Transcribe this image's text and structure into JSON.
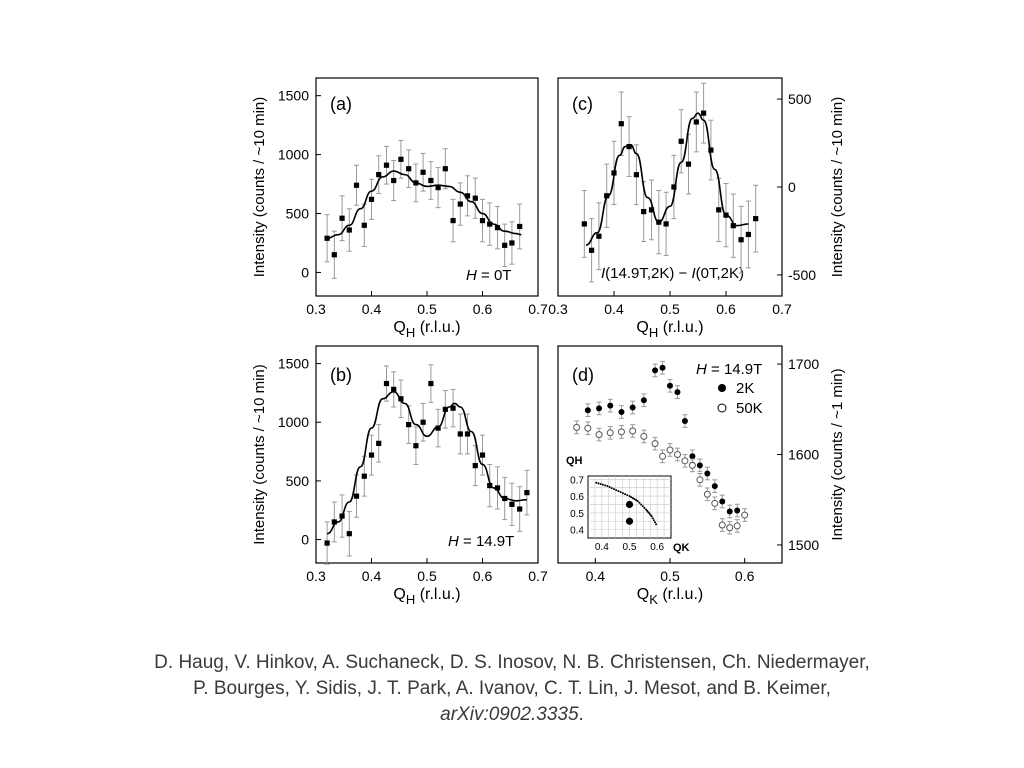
{
  "figure_area": "neutron scattering figure, four panels",
  "chart_data": [
    {
      "id": "a",
      "type": "scatter",
      "panel_label": "(a)",
      "annotation": "H = 0T",
      "xlabel": "QH (r.l.u.)",
      "ylabel": "Intensity (counts / ~10 min)",
      "xlim": [
        0.3,
        0.7
      ],
      "ylim": [
        -200,
        1650
      ],
      "xticks": [
        0.3,
        0.4,
        0.5,
        0.6,
        0.7
      ],
      "yticks": [
        0,
        500,
        1000,
        1500
      ],
      "series": [
        {
          "name": "data",
          "marker": "filled-square",
          "x": [
            0.32,
            0.333,
            0.347,
            0.36,
            0.373,
            0.387,
            0.4,
            0.413,
            0.427,
            0.44,
            0.453,
            0.467,
            0.48,
            0.493,
            0.507,
            0.52,
            0.533,
            0.547,
            0.56,
            0.573,
            0.587,
            0.6,
            0.613,
            0.627,
            0.64,
            0.653,
            0.667
          ],
          "y": [
            290,
            150,
            460,
            360,
            740,
            400,
            620,
            830,
            910,
            780,
            960,
            880,
            760,
            850,
            780,
            720,
            880,
            440,
            580,
            650,
            630,
            440,
            410,
            380,
            230,
            250,
            390
          ],
          "err": [
            200,
            200,
            190,
            180,
            170,
            180,
            170,
            160,
            160,
            170,
            160,
            160,
            160,
            160,
            160,
            170,
            170,
            180,
            180,
            170,
            170,
            180,
            180,
            180,
            180,
            180,
            190
          ]
        },
        {
          "name": "fit",
          "line": true,
          "x": [
            0.32,
            0.34,
            0.36,
            0.38,
            0.4,
            0.42,
            0.44,
            0.46,
            0.48,
            0.5,
            0.52,
            0.54,
            0.56,
            0.58,
            0.6,
            0.62,
            0.64,
            0.66,
            0.67
          ],
          "y": [
            290,
            320,
            400,
            540,
            690,
            810,
            860,
            830,
            760,
            730,
            740,
            730,
            680,
            600,
            500,
            410,
            350,
            330,
            320
          ]
        }
      ]
    },
    {
      "id": "b",
      "type": "scatter",
      "panel_label": "(b)",
      "annotation": "H = 14.9T",
      "xlabel": "QH (r.l.u.)",
      "ylabel": "Intensity (counts / ~10 min)",
      "xlim": [
        0.3,
        0.7
      ],
      "ylim": [
        -200,
        1650
      ],
      "xticks": [
        0.3,
        0.4,
        0.5,
        0.6,
        0.7
      ],
      "yticks": [
        0,
        500,
        1000,
        1500
      ],
      "series": [
        {
          "name": "data",
          "marker": "filled-square",
          "x": [
            0.32,
            0.333,
            0.347,
            0.36,
            0.373,
            0.387,
            0.4,
            0.413,
            0.427,
            0.44,
            0.453,
            0.467,
            0.48,
            0.493,
            0.507,
            0.52,
            0.533,
            0.547,
            0.56,
            0.573,
            0.587,
            0.6,
            0.613,
            0.627,
            0.64,
            0.653,
            0.667,
            0.68
          ],
          "y": [
            -30,
            150,
            200,
            50,
            370,
            540,
            720,
            820,
            1330,
            1280,
            1200,
            980,
            800,
            1000,
            1330,
            950,
            1110,
            1120,
            900,
            900,
            630,
            720,
            460,
            440,
            350,
            300,
            260,
            400
          ],
          "err": [
            180,
            170,
            180,
            190,
            180,
            170,
            170,
            160,
            150,
            150,
            160,
            160,
            160,
            160,
            160,
            160,
            160,
            160,
            170,
            170,
            170,
            170,
            180,
            180,
            180,
            180,
            190,
            190
          ]
        },
        {
          "name": "fit",
          "line": true,
          "x": [
            0.32,
            0.34,
            0.36,
            0.38,
            0.4,
            0.42,
            0.44,
            0.46,
            0.48,
            0.5,
            0.52,
            0.54,
            0.55,
            0.56,
            0.58,
            0.6,
            0.62,
            0.64,
            0.66,
            0.68
          ],
          "y": [
            50,
            150,
            320,
            620,
            950,
            1200,
            1260,
            1160,
            980,
            880,
            960,
            1130,
            1160,
            1130,
            920,
            640,
            440,
            350,
            330,
            340
          ]
        }
      ]
    },
    {
      "id": "c",
      "type": "scatter",
      "panel_label": "(c)",
      "annotation": "I(14.9T,2K) − I(0T,2K)",
      "xlabel": "QH (r.l.u.)",
      "ylabel": "Intensity (counts / ~10 min)",
      "y_axis_side": "right",
      "xlim": [
        0.3,
        0.7
      ],
      "ylim": [
        -620,
        620
      ],
      "xticks": [
        0.3,
        0.4,
        0.5,
        0.6,
        0.7
      ],
      "yticks": [
        -500,
        0,
        500
      ],
      "series": [
        {
          "name": "data",
          "marker": "filled-square",
          "x": [
            0.347,
            0.36,
            0.373,
            0.387,
            0.4,
            0.413,
            0.427,
            0.44,
            0.453,
            0.467,
            0.48,
            0.493,
            0.507,
            0.52,
            0.533,
            0.547,
            0.56,
            0.573,
            0.587,
            0.6,
            0.613,
            0.627,
            0.64,
            0.653
          ],
          "y": [
            -210,
            -360,
            -280,
            -50,
            80,
            360,
            230,
            70,
            -140,
            -130,
            -200,
            -210,
            0,
            260,
            130,
            370,
            420,
            210,
            -130,
            -160,
            -220,
            -300,
            -270,
            -180
          ],
          "err": [
            190,
            180,
            190,
            180,
            180,
            180,
            170,
            170,
            170,
            170,
            180,
            180,
            180,
            180,
            170,
            170,
            170,
            170,
            180,
            180,
            180,
            190,
            190,
            190
          ]
        },
        {
          "name": "fit",
          "line": true,
          "x": [
            0.35,
            0.37,
            0.39,
            0.41,
            0.42,
            0.43,
            0.44,
            0.46,
            0.48,
            0.5,
            0.52,
            0.54,
            0.55,
            0.56,
            0.58,
            0.6,
            0.62,
            0.64
          ],
          "y": [
            -330,
            -260,
            -50,
            180,
            230,
            240,
            190,
            -60,
            -200,
            -110,
            140,
            390,
            420,
            380,
            100,
            -160,
            -220,
            -210
          ]
        }
      ]
    },
    {
      "id": "d",
      "type": "scatter",
      "panel_label": "(d)",
      "annotation": "H = 14.9T",
      "xlabel": "QK (r.l.u.)",
      "ylabel": "Intensity (counts / ~1 min)",
      "y_axis_side": "right",
      "xlim": [
        0.35,
        0.65
      ],
      "ylim": [
        1480,
        1720
      ],
      "xticks": [
        0.4,
        0.5,
        0.6
      ],
      "yticks": [
        1500,
        1600,
        1700
      ],
      "legend": [
        {
          "label": "2K",
          "marker": "filled-circle"
        },
        {
          "label": "50K",
          "marker": "open-circle"
        }
      ],
      "series": [
        {
          "name": "2K",
          "marker": "filled-circle",
          "x": [
            0.39,
            0.405,
            0.42,
            0.435,
            0.45,
            0.465,
            0.48,
            0.49,
            0.5,
            0.51,
            0.52,
            0.53,
            0.54,
            0.55,
            0.56,
            0.57,
            0.58,
            0.59
          ],
          "y": [
            1649,
            1651,
            1654,
            1647,
            1652,
            1660,
            1693,
            1696,
            1676,
            1669,
            1637,
            1598,
            1588,
            1579,
            1565,
            1548,
            1537,
            1538
          ],
          "err": [
            7,
            7,
            7,
            7,
            7,
            7,
            7,
            7,
            7,
            7,
            7,
            7,
            7,
            7,
            7,
            7,
            7,
            7
          ]
        },
        {
          "name": "50K",
          "marker": "open-circle",
          "x": [
            0.375,
            0.39,
            0.405,
            0.42,
            0.435,
            0.45,
            0.465,
            0.48,
            0.49,
            0.5,
            0.51,
            0.52,
            0.53,
            0.54,
            0.55,
            0.56,
            0.57,
            0.58,
            0.59,
            0.6
          ],
          "y": [
            1630,
            1629,
            1622,
            1624,
            1625,
            1626,
            1620,
            1612,
            1598,
            1605,
            1600,
            1593,
            1588,
            1572,
            1556,
            1546,
            1522,
            1519,
            1521,
            1533
          ],
          "err": [
            7,
            7,
            7,
            7,
            7,
            7,
            7,
            7,
            7,
            7,
            7,
            7,
            7,
            7,
            7,
            7,
            7,
            7,
            7,
            7
          ]
        }
      ],
      "inset": {
        "type": "scatter",
        "xlabel": "QK",
        "ylabel": "QH",
        "xlim": [
          0.35,
          0.65
        ],
        "ylim": [
          0.35,
          0.72
        ],
        "xticks": [
          0.4,
          0.5,
          0.6
        ],
        "yticks": [
          0.4,
          0.5,
          0.6,
          0.7
        ],
        "points": {
          "x": [
            0.5,
            0.5
          ],
          "y": [
            0.55,
            0.45
          ]
        },
        "dotted_curve": {
          "x": [
            0.38,
            0.42,
            0.46,
            0.5,
            0.53,
            0.56,
            0.58,
            0.6
          ],
          "y": [
            0.68,
            0.66,
            0.63,
            0.6,
            0.57,
            0.52,
            0.48,
            0.42
          ]
        }
      }
    }
  ],
  "caption": {
    "line1": "D. Haug, V. Hinkov, A. Suchaneck, D. S. Inosov, N. B. Christensen, Ch. Niedermayer,",
    "line2": "P. Bourges,   Y. Sidis, J. T. Park, A. Ivanov, C. T. Lin, J. Mesot, and B. Keimer,",
    "reference": "arXiv:0902.3335",
    "reference_suffix": "."
  }
}
